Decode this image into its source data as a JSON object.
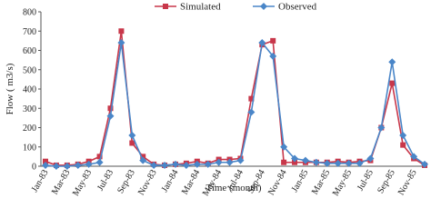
{
  "chart_data": {
    "type": "line",
    "x_label": "Time (month)",
    "y_label": "Flow ( m3/s)",
    "categories": [
      "Jan-83",
      null,
      "Mar-83",
      null,
      "May-83",
      null,
      "Jul-83",
      null,
      "Sep-83",
      null,
      "Nov-83",
      null,
      "Jan-84",
      null,
      "Mar-84",
      null,
      "May-84",
      null,
      "Jul-84",
      null,
      "Sep-84",
      null,
      "Nov-84",
      null,
      "Jan-85",
      null,
      "Mar-85",
      null,
      "May-85",
      null,
      "Jul-85",
      null,
      "Sep-85",
      null,
      "Nov-85",
      null
    ],
    "series": [
      {
        "name": "Simulated",
        "color": "#c8374a",
        "marker": "square",
        "values": [
          25,
          5,
          5,
          10,
          25,
          50,
          300,
          700,
          120,
          50,
          10,
          5,
          10,
          15,
          25,
          15,
          35,
          35,
          40,
          350,
          630,
          650,
          20,
          20,
          20,
          20,
          20,
          25,
          20,
          25,
          30,
          200,
          430,
          110,
          40,
          5
        ]
      },
      {
        "name": "Observed",
        "color": "#4a86c8",
        "marker": "diamond",
        "values": [
          5,
          0,
          0,
          5,
          10,
          20,
          260,
          640,
          160,
          30,
          5,
          5,
          10,
          5,
          10,
          10,
          20,
          20,
          30,
          280,
          640,
          570,
          100,
          40,
          30,
          20,
          15,
          15,
          15,
          15,
          40,
          200,
          540,
          160,
          50,
          10
        ]
      }
    ],
    "ylim": [
      0,
      800
    ],
    "yticks": [
      0,
      100,
      200,
      300,
      400,
      500,
      600,
      700,
      800
    ],
    "grid": false,
    "legend": "top"
  }
}
